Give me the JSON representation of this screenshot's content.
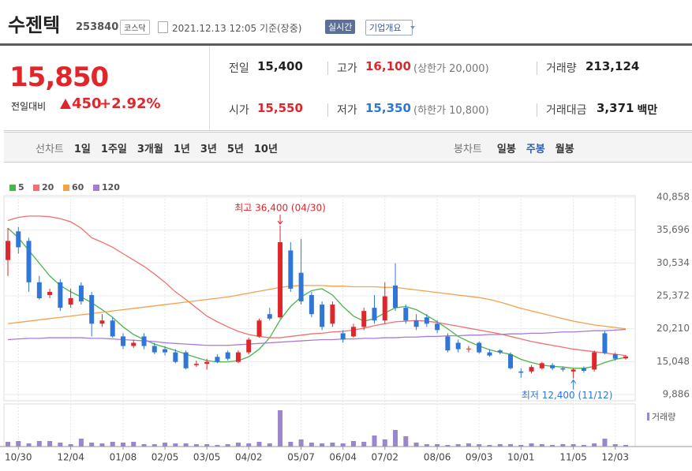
{
  "header": {
    "name": "수젠텍",
    "code": "253840",
    "market": "코스닥",
    "time": "2021.12.13 12:05 기준(장중)",
    "realtime": "실시간",
    "company": "기업개요"
  },
  "price": {
    "current": "15,850",
    "change_label": "전일대비",
    "change": "450",
    "rate": "+2.92%",
    "color": "#e0262b"
  },
  "info": [
    {
      "label": "전일",
      "value": "15,400",
      "color": "#222"
    },
    {
      "label": "고가",
      "value": "16,100",
      "note": "(상한가 20,000)",
      "color": "#e0262b"
    },
    {
      "label": "거래량",
      "value": "213,124",
      "color": "#222"
    },
    {
      "label": "시가",
      "value": "15,550",
      "color": "#e0262b"
    },
    {
      "label": "저가",
      "value": "15,350",
      "note": "(하한가 10,800)",
      "color": "#2f76d6"
    },
    {
      "label": "거래대금",
      "value": "3,371",
      "unit": "백만",
      "color": "#222"
    }
  ],
  "toolbar": {
    "line_label": "선차트",
    "line_periods": [
      "1일",
      "1주일",
      "3개월",
      "1년",
      "3년",
      "5년",
      "10년"
    ],
    "candle_label": "봉차트",
    "candle_periods": [
      "일봉",
      "주봉",
      "월봉"
    ],
    "selected_candle": 1
  },
  "chart_data": {
    "type": "candlestick",
    "categories": [
      null,
      "10/30",
      null,
      null,
      null,
      null,
      "12/04",
      null,
      null,
      null,
      null,
      "01/08",
      null,
      null,
      null,
      "02/05",
      null,
      null,
      null,
      "03/05",
      null,
      null,
      null,
      "04/02",
      null,
      null,
      null,
      null,
      "05/07",
      null,
      null,
      null,
      "06/04",
      null,
      null,
      null,
      "07/02",
      null,
      null,
      null,
      null,
      "08/06",
      null,
      null,
      null,
      "09/03",
      null,
      null,
      null,
      "10/01",
      null,
      null,
      null,
      null,
      "11/05",
      null,
      null,
      null,
      "12/03",
      null
    ],
    "open": [
      31000,
      35500,
      34000,
      27500,
      25500,
      27500,
      24000,
      27000,
      25500,
      21000,
      21500,
      19000,
      17500,
      19000,
      17500,
      17000,
      16500,
      16500,
      14500,
      14700,
      15800,
      16500,
      15000,
      16500,
      19000,
      22500,
      22000,
      32500,
      29000,
      25500,
      24000,
      21000,
      19500,
      19000,
      20500,
      23500,
      21500,
      27000,
      23500,
      21500,
      22000,
      21000,
      19000,
      18000,
      17000,
      18000,
      16500,
      16800,
      16200,
      13500,
      13500,
      14000,
      14500,
      14000,
      13500,
      14000,
      13800,
      19500,
      16200,
      15550
    ],
    "high": [
      36000,
      36200,
      34500,
      28500,
      26500,
      28000,
      26500,
      27500,
      26000,
      22500,
      22000,
      19500,
      18500,
      19500,
      18000,
      17500,
      17000,
      16800,
      15200,
      15500,
      16200,
      16800,
      16800,
      18800,
      21800,
      23500,
      36400,
      33800,
      34300,
      26000,
      24500,
      24500,
      20000,
      21000,
      23500,
      25500,
      27500,
      30500,
      24000,
      22500,
      22500,
      21500,
      19500,
      18500,
      17500,
      18200,
      17000,
      17000,
      16500,
      14000,
      14500,
      15000,
      14800,
      14300,
      14000,
      14300,
      16800,
      19800,
      16500,
      16100
    ],
    "low": [
      28500,
      32000,
      26000,
      24800,
      25000,
      23000,
      23500,
      24000,
      19000,
      20500,
      18800,
      17000,
      17200,
      17000,
      16200,
      16000,
      14800,
      13800,
      14200,
      13800,
      14800,
      15200,
      14800,
      16200,
      18800,
      21500,
      21800,
      26000,
      24000,
      22000,
      20000,
      20500,
      18000,
      18800,
      20000,
      21000,
      21000,
      23000,
      21000,
      20000,
      20500,
      19500,
      16500,
      16500,
      16500,
      16300,
      15800,
      16200,
      13800,
      12500,
      13200,
      13800,
      13700,
      13500,
      12400,
      13300,
      13500,
      16200,
      15200,
      15350
    ],
    "close": [
      34000,
      33000,
      27500,
      25000,
      26000,
      23500,
      25000,
      24500,
      21000,
      21500,
      19000,
      17500,
      18000,
      17500,
      16500,
      16500,
      15000,
      14000,
      14700,
      15000,
      15000,
      15500,
      16500,
      18500,
      21500,
      21800,
      33800,
      26500,
      24500,
      22500,
      20500,
      24000,
      18500,
      20500,
      23000,
      21500,
      25300,
      23500,
      21500,
      20500,
      21000,
      20000,
      16800,
      17000,
      17100,
      16500,
      16000,
      16500,
      14000,
      13300,
      14200,
      14800,
      14000,
      13800,
      13800,
      13600,
      16500,
      16400,
      15500,
      15850
    ],
    "up_color": "#e0262b",
    "down_color": "#2f76d6",
    "ylim": [
      9886,
      40858
    ],
    "yticks": [
      {
        "value": 40858,
        "label": "40,858"
      },
      {
        "value": 35696,
        "label": "35,696"
      },
      {
        "value": 30534,
        "label": "30,534"
      },
      {
        "value": 25372,
        "label": "25,372"
      },
      {
        "value": 20210,
        "label": "20,210"
      },
      {
        "value": 15048,
        "label": "15,048"
      },
      {
        "value": 9886,
        "label": "9,886"
      }
    ],
    "grid": true,
    "series": [
      {
        "name": "5",
        "color": "#49b54b",
        "values": [
          36000,
          34500,
          32500,
          30500,
          28500,
          27000,
          26000,
          25200,
          24300,
          23200,
          22000,
          20500,
          19300,
          18500,
          17800,
          17300,
          16800,
          16200,
          15700,
          15200,
          15000,
          15000,
          15200,
          15800,
          17000,
          18800,
          21600,
          23700,
          25200,
          26200,
          26500,
          25500,
          23700,
          22200,
          21400,
          21800,
          22700,
          23500,
          23700,
          23200,
          22300,
          21300,
          20200,
          19000,
          18200,
          17500,
          16900,
          16500,
          16200,
          15400,
          14900,
          14500,
          14300,
          14200,
          14000,
          14000,
          14300,
          14900,
          15400,
          15700
        ]
      },
      {
        "name": "20",
        "color": "#f07070",
        "values": [
          37200,
          37700,
          37900,
          37900,
          37800,
          37500,
          37000,
          36000,
          34500,
          33800,
          33000,
          32000,
          31000,
          30000,
          28800,
          27500,
          26000,
          24800,
          23500,
          22200,
          21300,
          20500,
          19800,
          19300,
          19000,
          18800,
          18800,
          19000,
          19200,
          19400,
          19500,
          19700,
          19800,
          20000,
          20300,
          20700,
          21000,
          21300,
          21400,
          21500,
          21400,
          21200,
          20900,
          20600,
          20300,
          20000,
          19700,
          19400,
          19000,
          18600,
          18200,
          17900,
          17600,
          17300,
          17000,
          16800,
          16600,
          16400,
          16200,
          16000
        ]
      },
      {
        "name": "60",
        "color": "#f5a04b",
        "values": [
          21000,
          21200,
          21400,
          21600,
          21800,
          22000,
          22200,
          22400,
          22600,
          22800,
          23000,
          23200,
          23400,
          23600,
          23800,
          24000,
          24200,
          24400,
          24600,
          24800,
          25000,
          25200,
          25500,
          25800,
          26100,
          26400,
          26700,
          26900,
          27000,
          27000,
          27000,
          26900,
          26900,
          26800,
          26800,
          26800,
          26700,
          26700,
          26500,
          26300,
          26100,
          25900,
          25700,
          25500,
          25300,
          25100,
          24800,
          24400,
          23900,
          23400,
          23000,
          22600,
          22200,
          21800,
          21400,
          21100,
          20800,
          20600,
          20400,
          20200
        ]
      },
      {
        "name": "120",
        "color": "#a87ad8",
        "values": [
          18500,
          18600,
          18700,
          18700,
          18800,
          18800,
          18800,
          18800,
          18700,
          18700,
          18600,
          18500,
          18400,
          18300,
          18200,
          18000,
          17900,
          17800,
          17700,
          17600,
          17600,
          17600,
          17700,
          17800,
          17900,
          18000,
          18100,
          18200,
          18300,
          18400,
          18500,
          18500,
          18600,
          18600,
          18700,
          18700,
          18800,
          18800,
          18900,
          18900,
          19000,
          19000,
          19100,
          19100,
          19200,
          19200,
          19300,
          19300,
          19400,
          19400,
          19500,
          19500,
          19600,
          19700,
          19700,
          19800,
          19900,
          19900,
          20000,
          20100
        ]
      }
    ],
    "volume": {
      "name": "거래량",
      "color": "#9a86cc",
      "values": [
        6,
        7,
        4,
        7,
        7,
        5,
        3,
        10,
        5,
        4,
        6,
        5,
        6,
        3,
        3,
        5,
        4,
        4,
        3,
        3,
        2,
        3,
        5,
        4,
        6,
        4,
        46,
        6,
        9,
        5,
        4,
        5,
        4,
        7,
        6,
        14,
        9,
        21,
        13,
        5,
        3,
        3,
        2,
        3,
        4,
        3,
        2,
        3,
        3,
        2,
        4,
        3,
        2,
        3,
        3,
        2,
        4,
        10,
        3,
        2
      ]
    },
    "max_label": "최고 36,400 (04/30)",
    "min_label": "최저 12,400 (11/12)"
  }
}
